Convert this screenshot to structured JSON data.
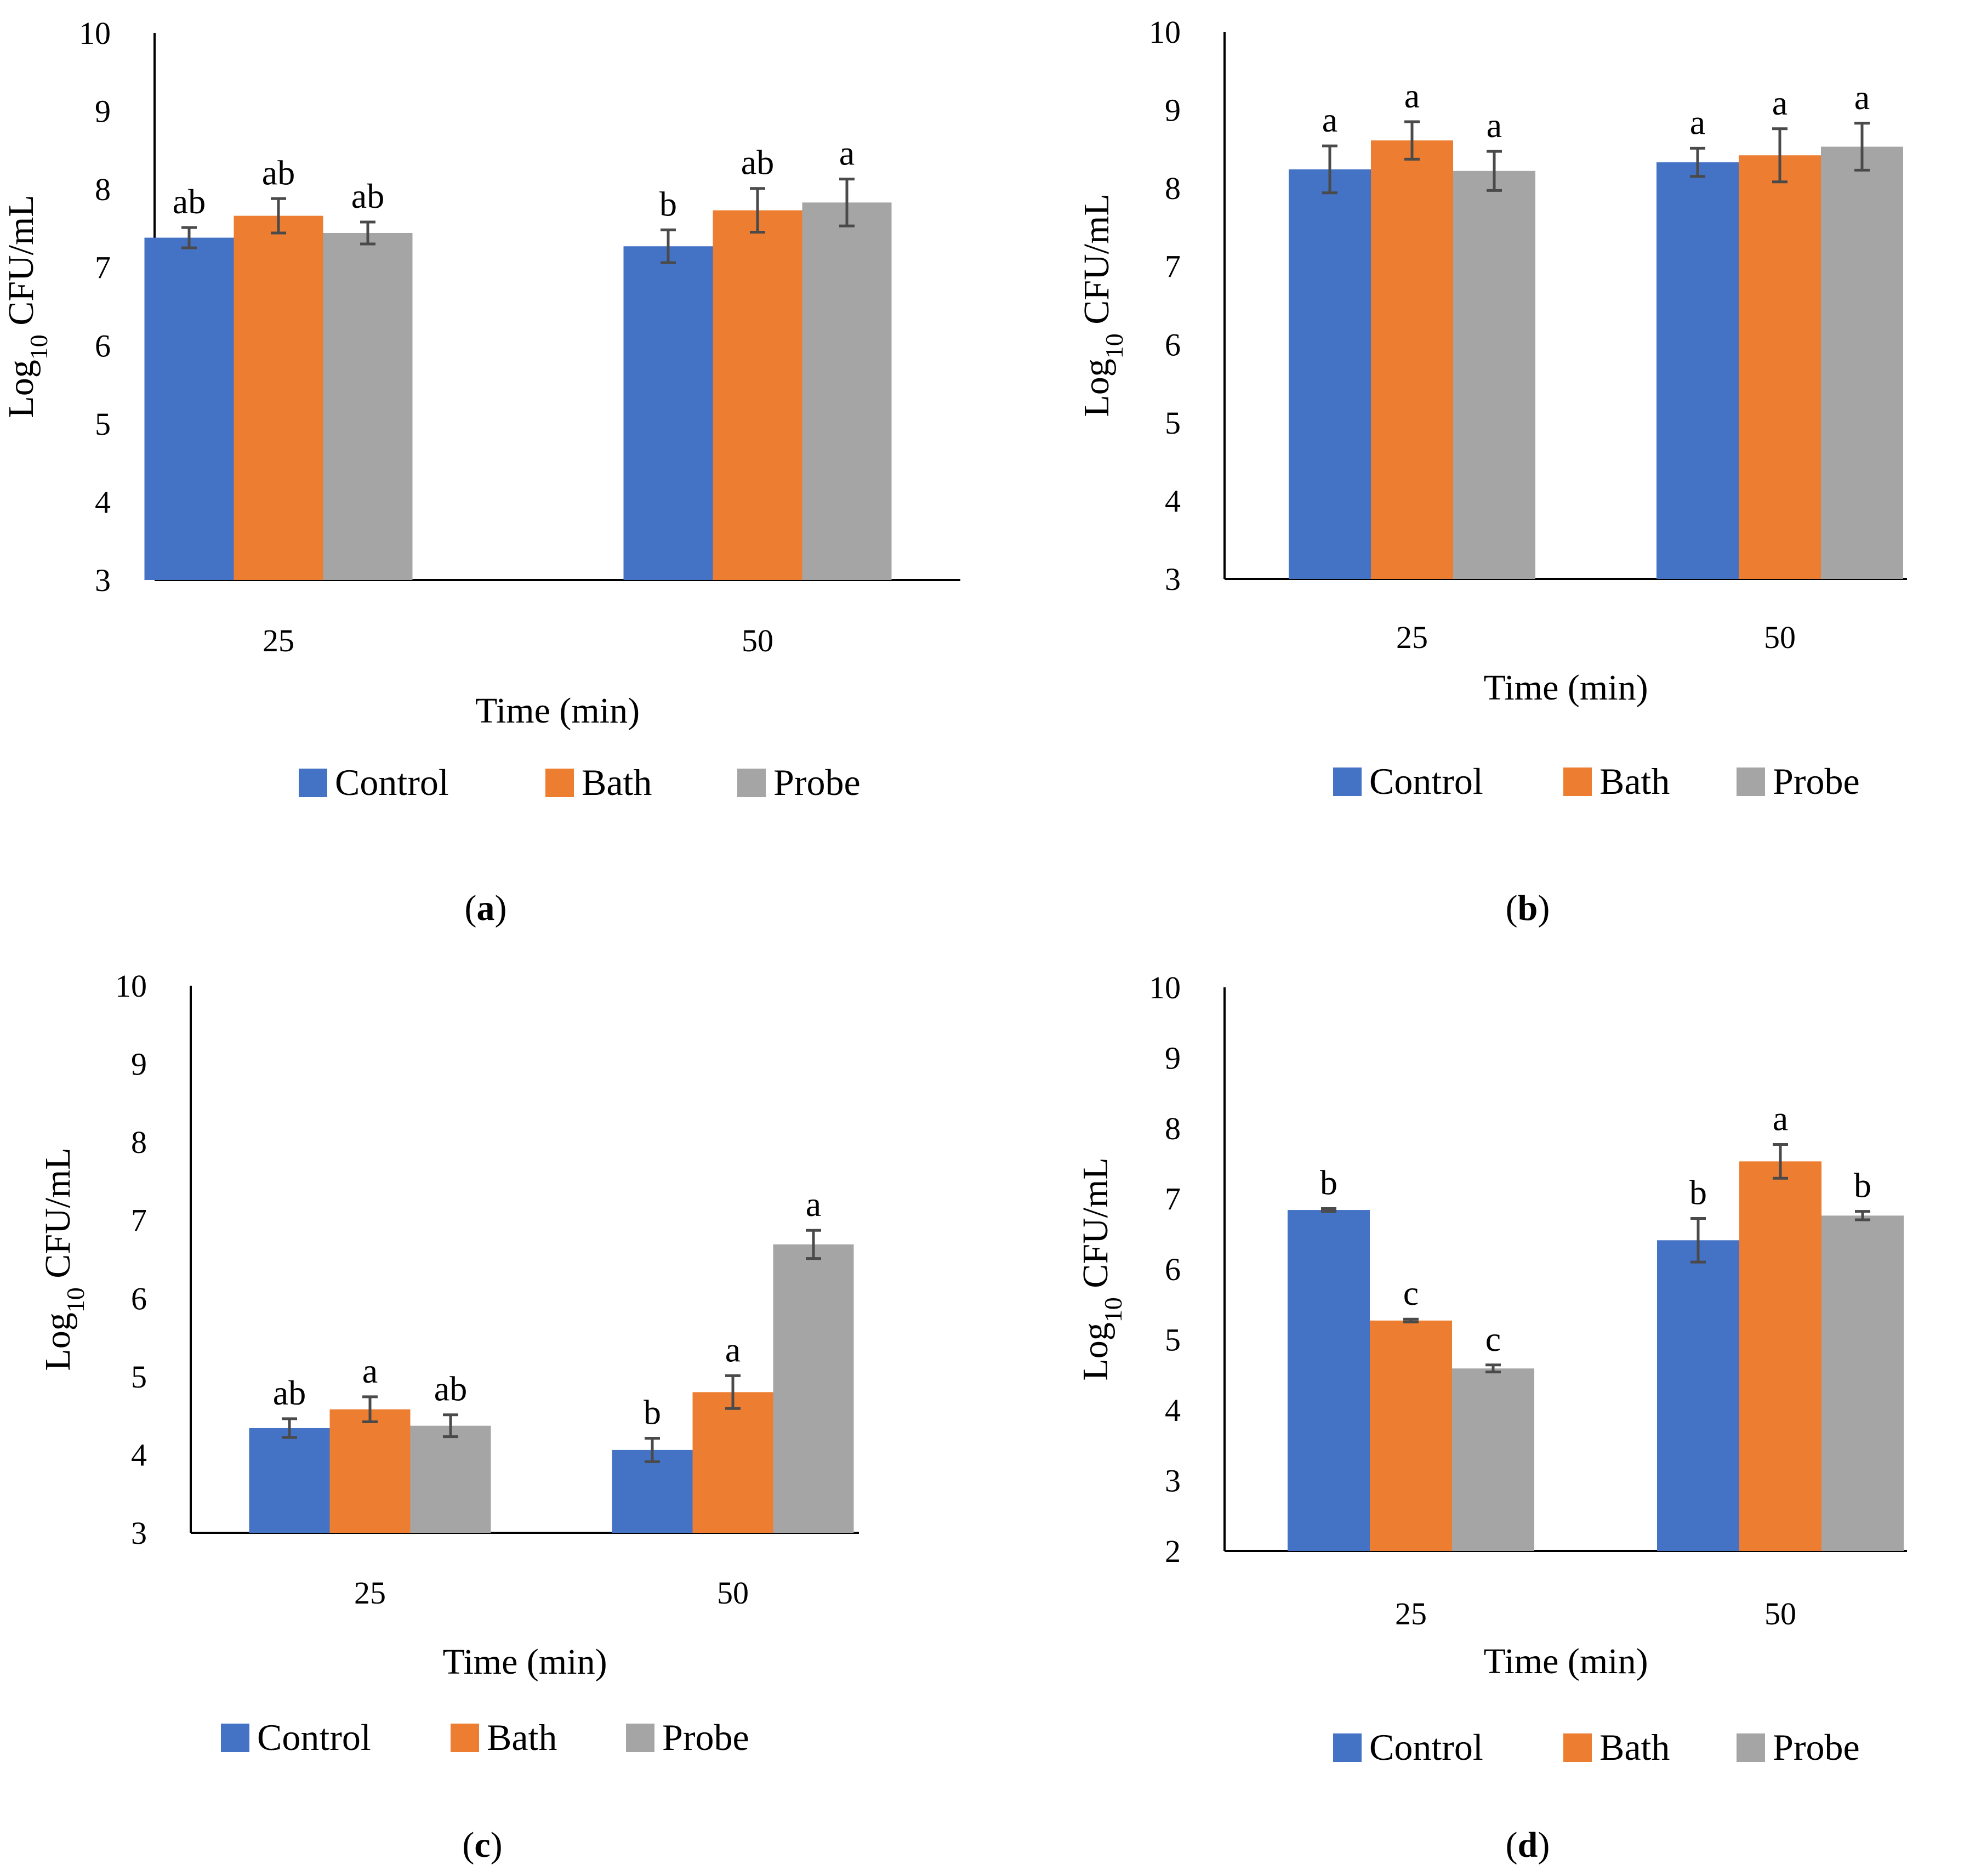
{
  "colors": {
    "Control": "#4472c4",
    "Bath": "#ed7d31",
    "Probe": "#a5a5a5",
    "axis": "#000000",
    "error_bar": "#4a4a4a"
  },
  "chart_data": [
    {
      "type": "bar",
      "panel": "a",
      "caption": {
        "open": "(",
        "letter": "a",
        "close": ")"
      },
      "xlabel": "Time (min)",
      "ylabel": "Log10 CFU/mL",
      "ylabel_parts": {
        "base": "Log",
        "sub": "10",
        "rest": " CFU/mL"
      },
      "ylim": [
        3,
        10
      ],
      "yticks": [
        "3",
        "4",
        "5",
        "6",
        "7",
        "8",
        "9",
        "10"
      ],
      "categories": [
        "25",
        "50"
      ],
      "series": [
        {
          "name": "Control",
          "values": [
            7.38,
            7.27
          ],
          "errors": [
            0.13,
            0.21
          ],
          "labels": [
            "ab",
            "b"
          ]
        },
        {
          "name": "Bath",
          "values": [
            7.66,
            7.73
          ],
          "errors": [
            0.22,
            0.28
          ],
          "labels": [
            "ab",
            "ab"
          ]
        },
        {
          "name": "Probe",
          "values": [
            7.44,
            7.83
          ],
          "errors": [
            0.14,
            0.3
          ],
          "labels": [
            "ab",
            "a"
          ]
        }
      ],
      "legend": [
        "Control",
        "Bath",
        "Probe"
      ],
      "legend_position": "bottom"
    },
    {
      "type": "bar",
      "panel": "b",
      "caption": {
        "open": "(",
        "letter": "b",
        "close": ")"
      },
      "xlabel": "Time (min)",
      "ylabel": "Log10 CFU/mL",
      "ylabel_parts": {
        "base": "Log",
        "sub": "10",
        "rest": " CFU/mL"
      },
      "ylim": [
        3,
        10
      ],
      "yticks": [
        "3",
        "4",
        "5",
        "6",
        "7",
        "8",
        "9",
        "10"
      ],
      "categories": [
        "25",
        "50"
      ],
      "series": [
        {
          "name": "Control",
          "values": [
            8.24,
            8.33
          ],
          "errors": [
            0.3,
            0.18
          ],
          "labels": [
            "a",
            "a"
          ]
        },
        {
          "name": "Bath",
          "values": [
            8.61,
            8.42
          ],
          "errors": [
            0.24,
            0.34
          ],
          "labels": [
            "a",
            "a"
          ]
        },
        {
          "name": "Probe",
          "values": [
            8.22,
            8.53
          ],
          "errors": [
            0.25,
            0.3
          ],
          "labels": [
            "a",
            "a"
          ]
        }
      ],
      "legend": [
        "Control",
        "Bath",
        "Probe"
      ],
      "legend_position": "bottom"
    },
    {
      "type": "bar",
      "panel": "c",
      "caption": {
        "open": "(",
        "letter": "c",
        "close": ")"
      },
      "xlabel": "Time (min)",
      "ylabel": "Log10 CFU/mL",
      "ylabel_parts": {
        "base": "Log",
        "sub": "10",
        "rest": " CFU/mL"
      },
      "ylim": [
        3,
        10
      ],
      "yticks": [
        "3",
        "4",
        "5",
        "6",
        "7",
        "8",
        "9",
        "10"
      ],
      "categories": [
        "25",
        "50"
      ],
      "series": [
        {
          "name": "Control",
          "values": [
            4.34,
            4.06
          ],
          "errors": [
            0.12,
            0.15
          ],
          "labels": [
            "ab",
            "b"
          ]
        },
        {
          "name": "Bath",
          "values": [
            4.58,
            4.8
          ],
          "errors": [
            0.16,
            0.21
          ],
          "labels": [
            "a",
            "a"
          ]
        },
        {
          "name": "Probe",
          "values": [
            4.37,
            6.69
          ],
          "errors": [
            0.14,
            0.18
          ],
          "labels": [
            "ab",
            "a"
          ]
        }
      ],
      "legend": [
        "Control",
        "Bath",
        "Probe"
      ],
      "legend_position": "bottom"
    },
    {
      "type": "bar",
      "panel": "d",
      "caption": {
        "open": "(",
        "letter": "d",
        "close": ")"
      },
      "xlabel": "Time (min)",
      "ylabel": "Log10 CFU/mL",
      "ylabel_parts": {
        "base": "Log",
        "sub": "10",
        "rest": " CFU/mL"
      },
      "ylim": [
        2,
        10
      ],
      "yticks": [
        "2",
        "3",
        "4",
        "5",
        "6",
        "7",
        "8",
        "9",
        "10"
      ],
      "categories": [
        "25",
        "50"
      ],
      "series": [
        {
          "name": "Control",
          "values": [
            6.84,
            6.41
          ],
          "errors": [
            0.02,
            0.31
          ],
          "labels": [
            "b",
            "b"
          ]
        },
        {
          "name": "Bath",
          "values": [
            5.27,
            7.53
          ],
          "errors": [
            0.02,
            0.24
          ],
          "labels": [
            "c",
            "a"
          ]
        },
        {
          "name": "Probe",
          "values": [
            4.59,
            6.76
          ],
          "errors": [
            0.05,
            0.06
          ],
          "labels": [
            "c",
            "b"
          ]
        }
      ],
      "legend": [
        "Control",
        "Bath",
        "Probe"
      ],
      "legend_position": "bottom"
    }
  ]
}
